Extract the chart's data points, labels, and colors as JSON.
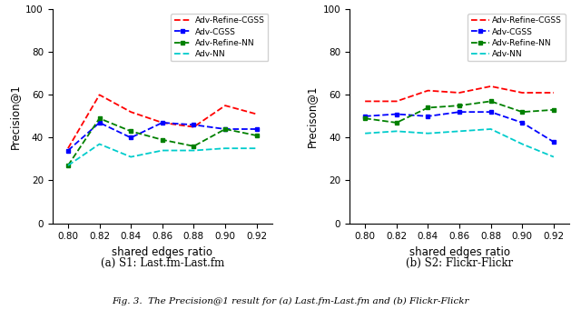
{
  "x": [
    0.8,
    0.82,
    0.84,
    0.86,
    0.88,
    0.9,
    0.92
  ],
  "plot1": {
    "adv_refine_cgss": [
      35,
      60,
      52,
      47,
      45,
      55,
      51
    ],
    "adv_cgss": [
      34,
      47,
      40,
      47,
      46,
      44,
      44
    ],
    "adv_refine_nn": [
      27,
      49,
      43,
      39,
      36,
      44,
      41
    ],
    "adv_nn": [
      27,
      37,
      31,
      34,
      34,
      35,
      35
    ]
  },
  "plot2": {
    "adv_refine_cgss": [
      57,
      57,
      62,
      61,
      64,
      61,
      61
    ],
    "adv_cgss": [
      50,
      51,
      50,
      52,
      52,
      47,
      38
    ],
    "adv_refine_nn": [
      49,
      47,
      54,
      55,
      57,
      52,
      53
    ],
    "adv_nn": [
      42,
      43,
      42,
      43,
      44,
      37,
      31
    ]
  },
  "colors": {
    "adv_refine_cgss": "#ff0000",
    "adv_cgss": "#0000ff",
    "adv_refine_nn": "#008000",
    "adv_nn": "#00cccc"
  },
  "markers": {
    "adv_refine_cgss": null,
    "adv_cgss": "s",
    "adv_refine_nn": "s",
    "adv_nn": null
  },
  "labels": {
    "adv_refine_cgss": "Adv-Refine-CGSS",
    "adv_cgss": "Adv-CGSS",
    "adv_refine_nn": "Adv-Refine-NN",
    "adv_nn": "Adv-NN"
  },
  "xlabel": "shared edges ratio",
  "ylabel1": "Precision@1",
  "ylabel2": "Precison@1",
  "ylim": [
    0,
    100
  ],
  "yticks": [
    0,
    20,
    40,
    60,
    80,
    100
  ],
  "subtitle1": "(a) S1: Last.fm-Last.fm",
  "subtitle2": "(b) S2: Flickr-Flickr",
  "caption": "Fig. 3.  The Precision@1 result for (a) Last.fm-Last.fm and (b) Flickr-Flickr"
}
